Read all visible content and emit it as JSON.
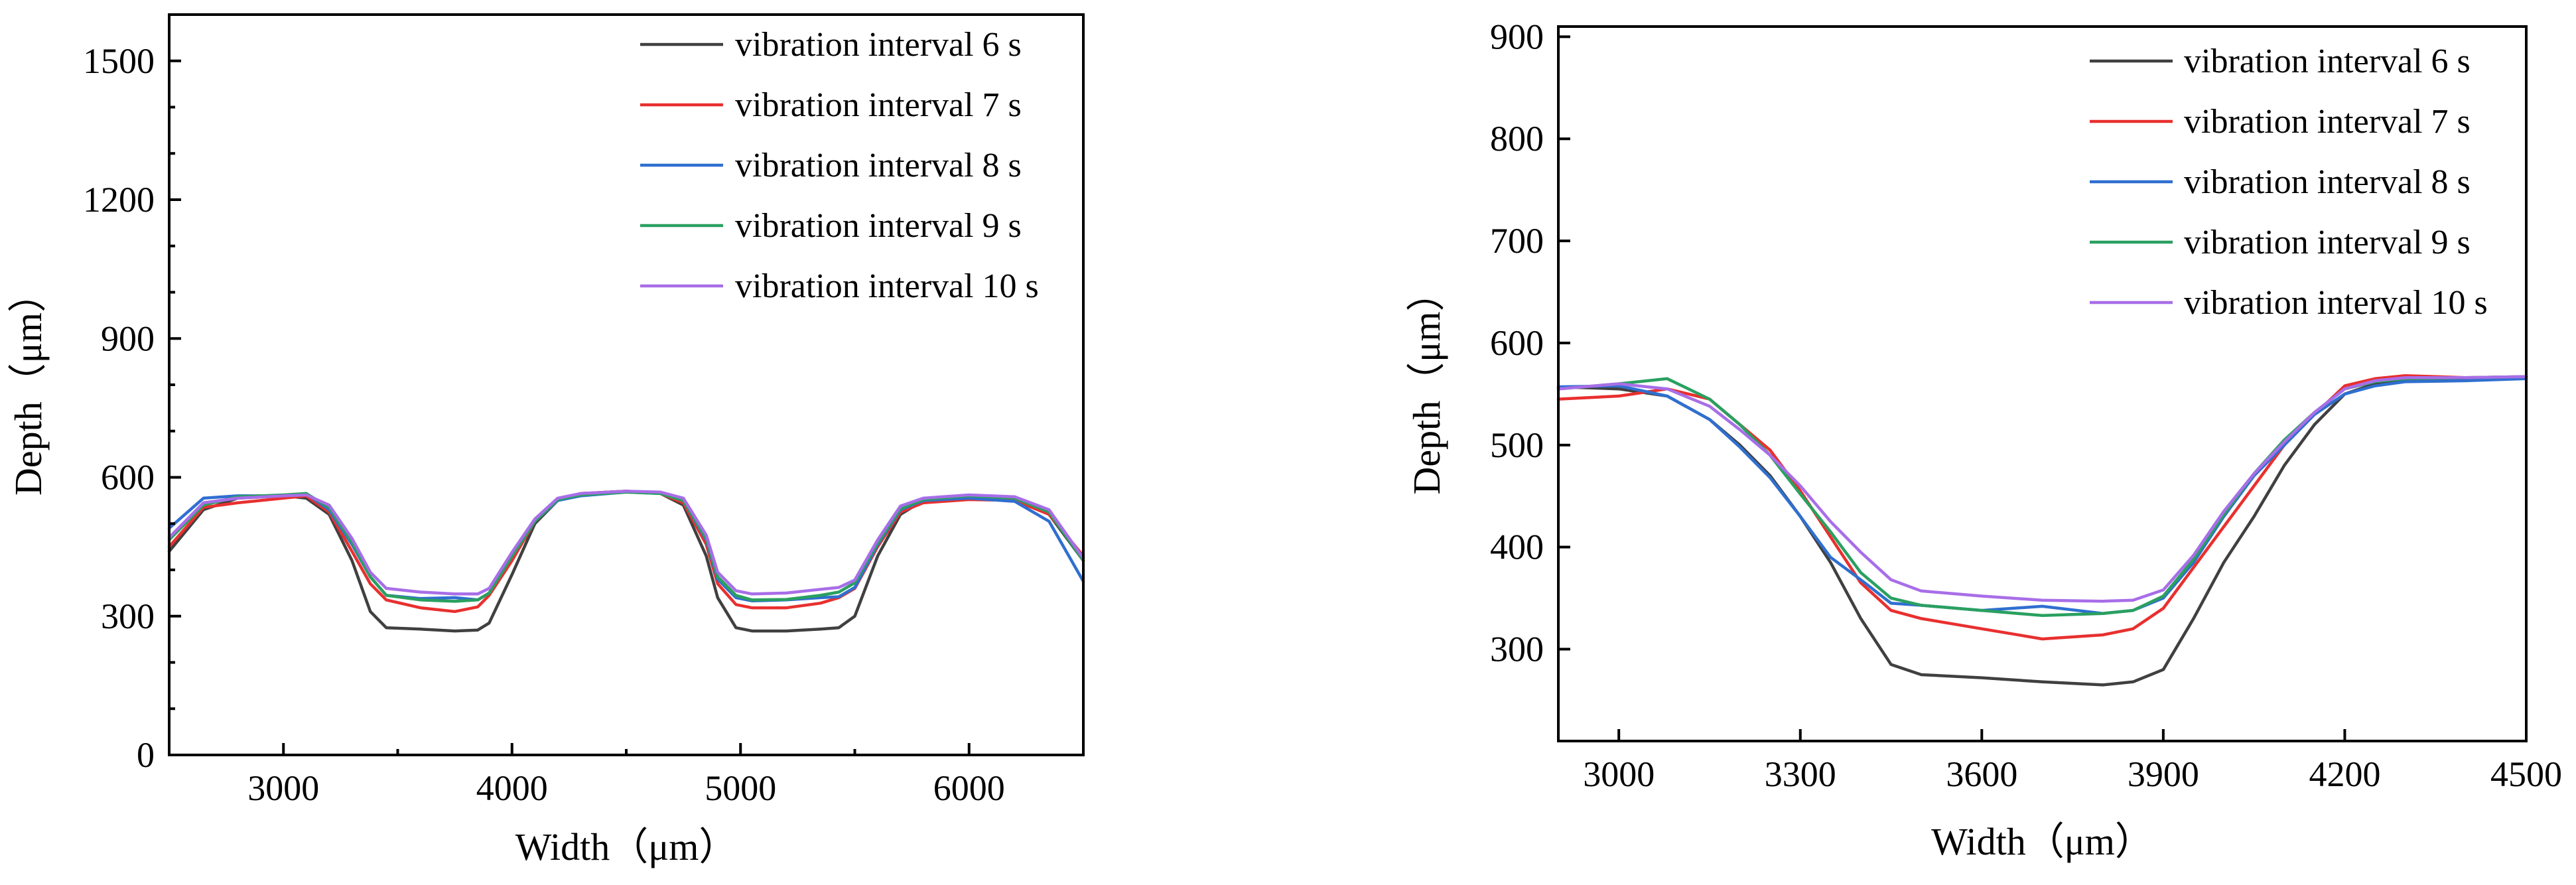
{
  "chart_data": [
    {
      "type": "line",
      "xlabel": "Width（μm）",
      "ylabel": "Depth（μm）",
      "xlim": [
        2500,
        6500
      ],
      "ylim": [
        0,
        1600
      ],
      "xticks": [
        3000,
        4000,
        5000,
        6000
      ],
      "yticks": [
        0,
        300,
        600,
        900,
        1200,
        1500
      ],
      "yminor_step": 100,
      "xminor_step": 500,
      "legend": "top-right",
      "series": [
        {
          "name": "vibration interval 6 s",
          "color": "#404040",
          "x": [
            2500,
            2650,
            2800,
            3000,
            3100,
            3200,
            3300,
            3380,
            3450,
            3600,
            3750,
            3850,
            3900,
            4000,
            4100,
            4200,
            4300,
            4500,
            4650,
            4750,
            4850,
            4900,
            4980,
            5050,
            5200,
            5350,
            5430,
            5500,
            5600,
            5700,
            5800,
            6000,
            6200,
            6350,
            6500
          ],
          "y": [
            440,
            530,
            555,
            560,
            555,
            520,
            420,
            310,
            275,
            272,
            268,
            270,
            285,
            390,
            500,
            550,
            565,
            570,
            565,
            540,
            430,
            340,
            275,
            268,
            268,
            272,
            275,
            300,
            430,
            520,
            550,
            558,
            555,
            520,
            420
          ]
        },
        {
          "name": "vibration interval 7 s",
          "color": "#e8302f",
          "x": [
            2500,
            2650,
            2800,
            3000,
            3100,
            3200,
            3300,
            3380,
            3450,
            3600,
            3750,
            3850,
            3900,
            4000,
            4100,
            4200,
            4300,
            4500,
            4650,
            4750,
            4850,
            4900,
            4980,
            5050,
            5200,
            5350,
            5430,
            5500,
            5600,
            5700,
            5800,
            6000,
            6200,
            6350,
            6500
          ],
          "y": [
            450,
            535,
            545,
            555,
            560,
            525,
            440,
            370,
            335,
            318,
            310,
            320,
            345,
            420,
            505,
            550,
            565,
            570,
            565,
            545,
            455,
            370,
            325,
            318,
            318,
            328,
            340,
            360,
            450,
            525,
            545,
            552,
            550,
            520,
            430
          ]
        },
        {
          "name": "vibration interval 8 s",
          "color": "#2f6fd0",
          "x": [
            2500,
            2650,
            2800,
            3000,
            3100,
            3200,
            3300,
            3380,
            3450,
            3600,
            3750,
            3850,
            3900,
            4000,
            4100,
            4200,
            4300,
            4500,
            4650,
            4750,
            4850,
            4900,
            4980,
            5050,
            5200,
            5350,
            5430,
            5500,
            5600,
            5700,
            5800,
            6000,
            6200,
            6350,
            6500
          ],
          "y": [
            490,
            555,
            560,
            560,
            565,
            530,
            455,
            385,
            345,
            338,
            340,
            335,
            350,
            430,
            505,
            550,
            560,
            568,
            565,
            550,
            465,
            380,
            340,
            333,
            335,
            340,
            342,
            362,
            455,
            530,
            550,
            555,
            548,
            505,
            375
          ]
        },
        {
          "name": "vibration interval 9 s",
          "color": "#2aa060",
          "x": [
            2500,
            2650,
            2800,
            3000,
            3100,
            3200,
            3300,
            3380,
            3450,
            3600,
            3750,
            3850,
            3900,
            4000,
            4100,
            4200,
            4300,
            4500,
            4650,
            4750,
            4850,
            4900,
            4980,
            5050,
            5200,
            5350,
            5430,
            5500,
            5600,
            5700,
            5800,
            6000,
            6200,
            6350,
            6500
          ],
          "y": [
            465,
            540,
            558,
            562,
            565,
            535,
            460,
            385,
            345,
            335,
            332,
            335,
            350,
            430,
            505,
            552,
            562,
            568,
            565,
            550,
            468,
            385,
            345,
            335,
            336,
            345,
            352,
            372,
            458,
            532,
            552,
            560,
            555,
            525,
            420
          ]
        },
        {
          "name": "vibration interval 10 s",
          "color": "#a86ee8",
          "x": [
            2500,
            2650,
            2800,
            3000,
            3100,
            3200,
            3300,
            3380,
            3450,
            3600,
            3750,
            3850,
            3900,
            4000,
            4100,
            4200,
            4300,
            4500,
            4650,
            4750,
            4850,
            4900,
            4980,
            5050,
            5200,
            5350,
            5430,
            5500,
            5600,
            5700,
            5800,
            6000,
            6200,
            6350,
            6500
          ],
          "y": [
            470,
            545,
            555,
            560,
            562,
            540,
            468,
            395,
            360,
            352,
            348,
            348,
            360,
            438,
            510,
            555,
            565,
            570,
            568,
            555,
            475,
            395,
            355,
            348,
            350,
            358,
            362,
            378,
            465,
            538,
            555,
            562,
            558,
            530,
            425
          ]
        }
      ]
    },
    {
      "type": "line",
      "xlabel": "Width（μm）",
      "ylabel": "Depth（μm）",
      "xlim": [
        2900,
        4500
      ],
      "ylim": [
        210,
        910
      ],
      "xticks": [
        3000,
        3300,
        3600,
        3900,
        4200,
        4500
      ],
      "yticks": [
        300,
        400,
        500,
        600,
        700,
        800,
        900
      ],
      "legend": "top-right",
      "series": [
        {
          "name": "vibration interval 6 s",
          "color": "#404040",
          "x": [
            2900,
            3000,
            3080,
            3150,
            3200,
            3250,
            3300,
            3350,
            3400,
            3450,
            3500,
            3600,
            3700,
            3800,
            3850,
            3900,
            3950,
            4000,
            4050,
            4100,
            4150,
            4200,
            4250,
            4300,
            4400,
            4500
          ],
          "y": [
            557,
            555,
            548,
            525,
            500,
            470,
            430,
            385,
            330,
            285,
            275,
            272,
            268,
            265,
            268,
            280,
            330,
            385,
            430,
            480,
            520,
            550,
            560,
            563,
            565,
            567
          ]
        },
        {
          "name": "vibration interval 7 s",
          "color": "#e8302f",
          "x": [
            2900,
            3000,
            3080,
            3150,
            3200,
            3250,
            3300,
            3350,
            3400,
            3450,
            3500,
            3600,
            3700,
            3800,
            3850,
            3900,
            3950,
            4000,
            4050,
            4100,
            4150,
            4200,
            4250,
            4300,
            4400,
            4500
          ],
          "y": [
            545,
            548,
            555,
            545,
            520,
            495,
            455,
            410,
            365,
            338,
            330,
            320,
            310,
            314,
            320,
            340,
            380,
            420,
            460,
            500,
            530,
            558,
            565,
            568,
            566,
            567
          ]
        },
        {
          "name": "vibration interval 8 s",
          "color": "#2f6fd0",
          "x": [
            2900,
            3000,
            3080,
            3150,
            3200,
            3250,
            3300,
            3350,
            3400,
            3450,
            3500,
            3600,
            3700,
            3800,
            3850,
            3900,
            3950,
            4000,
            4050,
            4100,
            4150,
            4200,
            4250,
            4300,
            4400,
            4500
          ],
          "y": [
            557,
            558,
            548,
            525,
            498,
            468,
            430,
            390,
            368,
            345,
            343,
            338,
            342,
            335,
            338,
            350,
            385,
            430,
            470,
            500,
            530,
            550,
            558,
            562,
            563,
            565
          ]
        },
        {
          "name": "vibration interval 9 s",
          "color": "#2aa060",
          "x": [
            2900,
            3000,
            3080,
            3150,
            3200,
            3250,
            3300,
            3350,
            3400,
            3450,
            3500,
            3600,
            3700,
            3800,
            3850,
            3900,
            3950,
            4000,
            4050,
            4100,
            4150,
            4200,
            4250,
            4300,
            4400,
            4500
          ],
          "y": [
            555,
            560,
            565,
            545,
            520,
            490,
            452,
            415,
            375,
            350,
            343,
            338,
            333,
            335,
            338,
            352,
            388,
            432,
            472,
            505,
            532,
            555,
            562,
            565,
            566,
            567
          ]
        },
        {
          "name": "vibration interval 10 s",
          "color": "#a86ee8",
          "x": [
            2900,
            3000,
            3080,
            3150,
            3200,
            3250,
            3300,
            3350,
            3400,
            3450,
            3500,
            3600,
            3700,
            3800,
            3850,
            3900,
            3950,
            4000,
            4050,
            4100,
            4150,
            4200,
            4250,
            4300,
            4400,
            4500
          ],
          "y": [
            555,
            560,
            555,
            538,
            515,
            490,
            460,
            425,
            395,
            368,
            357,
            352,
            348,
            347,
            348,
            358,
            392,
            435,
            472,
            503,
            532,
            555,
            563,
            566,
            566,
            567
          ]
        }
      ]
    }
  ]
}
